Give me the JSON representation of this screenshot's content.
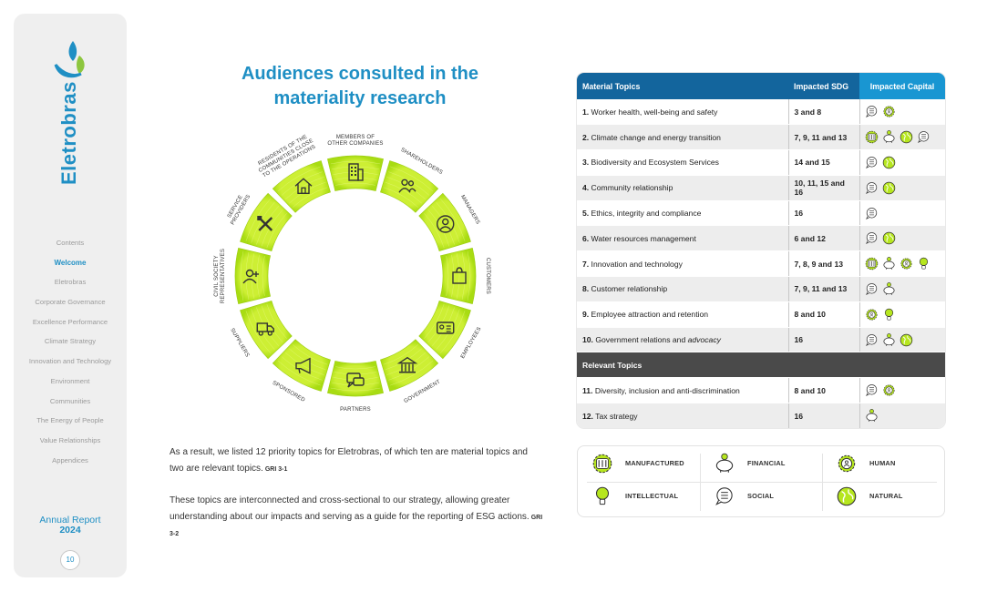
{
  "brand": {
    "name": "Eletrobras"
  },
  "sidebar": {
    "items": [
      {
        "label": "Contents",
        "active": false
      },
      {
        "label": "Welcome",
        "active": true
      },
      {
        "label": "Eletrobras",
        "active": false
      },
      {
        "label": "Corporate Governance",
        "active": false
      },
      {
        "label": "Excellence Performance",
        "active": false
      },
      {
        "label": "Climate Strategy",
        "active": false
      },
      {
        "label": "Innovation and Technology",
        "active": false
      },
      {
        "label": "Environment",
        "active": false
      },
      {
        "label": "Communities",
        "active": false
      },
      {
        "label": "The Energy of People",
        "active": false
      },
      {
        "label": "Value Relationships",
        "active": false
      },
      {
        "label": "Appendices",
        "active": false
      }
    ],
    "report_label": "Annual Report",
    "report_year": "2024",
    "page_number": "10"
  },
  "title": {
    "line1": "Audiences consulted in the",
    "line2": "materiality research"
  },
  "wheel": {
    "segments": [
      {
        "label": [
          "SHAREHOLDERS"
        ],
        "icon": "people-icon"
      },
      {
        "label": [
          "MANAGERS"
        ],
        "icon": "person-circle-icon"
      },
      {
        "label": [
          "CUSTOMERS"
        ],
        "icon": "shopping-bag-icon"
      },
      {
        "label": [
          "EMPLOYEES"
        ],
        "icon": "id-card-icon"
      },
      {
        "label": [
          "GOVERNMENT"
        ],
        "icon": "government-building-icon"
      },
      {
        "label": [
          "PARTNERS"
        ],
        "icon": "chat-bubble-icon"
      },
      {
        "label": [
          "SPONSORED"
        ],
        "icon": "megaphone-icon"
      },
      {
        "label": [
          "SUPPLIERS"
        ],
        "icon": "truck-icon"
      },
      {
        "label": [
          "CIVIL SOCIETY",
          "REPRESENTATIVES"
        ],
        "icon": "person-add-icon"
      },
      {
        "label": [
          "SERVICE",
          "PROVIDERS"
        ],
        "icon": "tools-icon"
      },
      {
        "label": [
          "RESIDENTS OF THE",
          "COMMUNITIES CLOSE",
          "TO THE OPERATIONS"
        ],
        "icon": "house-icon"
      },
      {
        "label": [
          "MEMBERS OF",
          "OTHER COMPANIES"
        ],
        "icon": "office-building-icon"
      }
    ]
  },
  "body": {
    "p1": "As a result, we listed 12 priority topics for Eletrobras, of which ten are material topics and two are relevant topics.",
    "p1_gri": "GRI 3-1",
    "p2": "These topics are interconnected and cross-sectional to our strategy, allowing greater understanding about our impacts and serving as a guide for the reporting of ESG actions.",
    "p2_gri": "GRI 3-2"
  },
  "table": {
    "headers": {
      "topic": "Material Topics",
      "sdg": "Impacted SDG",
      "capital": "Impacted Capital"
    },
    "relevant_header": "Relevant Topics",
    "material": [
      {
        "num": "1.",
        "topic": "Worker health, well-being and safety",
        "sdg": "3 and 8",
        "capitals": [
          "social",
          "human"
        ]
      },
      {
        "num": "2.",
        "topic": "Climate change and energy transition",
        "sdg": "7, 9, 11 and 13",
        "capitals": [
          "manufactured",
          "financial",
          "natural",
          "social"
        ]
      },
      {
        "num": "3.",
        "topic": "Biodiversity and Ecosystem Services",
        "sdg": "14 and 15",
        "capitals": [
          "social",
          "natural"
        ]
      },
      {
        "num": "4.",
        "topic": "Community relationship",
        "sdg": "10, 11, 15 and 16",
        "capitals": [
          "social",
          "natural"
        ]
      },
      {
        "num": "5.",
        "topic": "Ethics, integrity and compliance",
        "sdg": "16",
        "capitals": [
          "social"
        ]
      },
      {
        "num": "6.",
        "topic": "Water resources management",
        "sdg": "6 and 12",
        "capitals": [
          "social",
          "natural"
        ]
      },
      {
        "num": "7.",
        "topic": "Innovation and technology",
        "sdg": "7, 8, 9 and 13",
        "capitals": [
          "manufactured",
          "financial",
          "human",
          "intellectual"
        ]
      },
      {
        "num": "8.",
        "topic": "Customer relationship",
        "sdg": "7, 9, 11 and 13",
        "capitals": [
          "social",
          "financial"
        ]
      },
      {
        "num": "9.",
        "topic": "Employee attraction and retention",
        "sdg": "8 and 10",
        "capitals": [
          "human",
          "intellectual"
        ]
      },
      {
        "num": "10.",
        "topic": "Government relations and ",
        "topic_em": "advocacy",
        "sdg": "16",
        "capitals": [
          "social",
          "financial",
          "natural"
        ]
      }
    ],
    "relevant": [
      {
        "num": "11.",
        "topic": "Diversity, inclusion and anti-discrimination",
        "sdg": "8 and 10",
        "capitals": [
          "social",
          "human"
        ]
      },
      {
        "num": "12.",
        "topic": "Tax strategy",
        "sdg": "16",
        "capitals": [
          "financial"
        ]
      }
    ]
  },
  "legend": [
    {
      "key": "manufactured",
      "label": "MANUFACTURED",
      "icon": "factory-gear-icon"
    },
    {
      "key": "financial",
      "label": "FINANCIAL",
      "icon": "piggy-bank-icon"
    },
    {
      "key": "human",
      "label": "HUMAN",
      "icon": "human-gear-icon"
    },
    {
      "key": "intellectual",
      "label": "INTELLECTUAL",
      "icon": "lightbulb-icon"
    },
    {
      "key": "social",
      "label": "SOCIAL",
      "icon": "speech-bubble-icon"
    },
    {
      "key": "natural",
      "label": "NATURAL",
      "icon": "globe-leaf-icon"
    }
  ],
  "colors": {
    "brand_blue": "#1f8fc4",
    "table_header": "#13659d",
    "capital_header": "#1996d2",
    "segment_green": "#b6e61e",
    "segment_light": "#e9f88a",
    "section_dark": "#4a4a4a"
  }
}
